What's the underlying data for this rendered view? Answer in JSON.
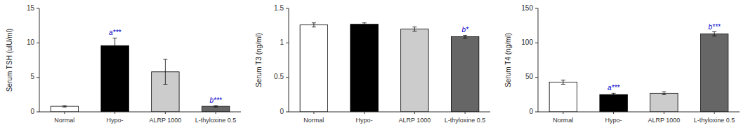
{
  "chart_data": [
    {
      "type": "bar",
      "ylabel": "Serum TSH (uIU/ml)",
      "categories": [
        "Normal",
        "Hypo-",
        "ALRP 1000",
        "L-thyloxine 0.5"
      ],
      "values": [
        0.8,
        9.6,
        5.8,
        0.8
      ],
      "errors": [
        0.1,
        1.1,
        1.8,
        0.1
      ],
      "colors": [
        "#ffffff",
        "#000000",
        "#cccccc",
        "#666666"
      ],
      "ylim": [
        0,
        15
      ],
      "yticks": [
        0,
        5,
        10,
        15
      ],
      "annotations": [
        {
          "text": "a***",
          "category": "Hypo-",
          "color": "#0000cc"
        },
        {
          "text": "b***",
          "category": "L-thyloxine 0.5",
          "color": "#0000cc"
        }
      ]
    },
    {
      "type": "bar",
      "ylabel": "Serum T3 (ng/ml)",
      "categories": [
        "Normal",
        "Hypo-",
        "ALRP 1000",
        "L-thyloxine 0.5"
      ],
      "values": [
        1.26,
        1.27,
        1.2,
        1.09
      ],
      "errors": [
        0.03,
        0.02,
        0.03,
        0.02
      ],
      "colors": [
        "#ffffff",
        "#000000",
        "#cccccc",
        "#666666"
      ],
      "ylim": [
        0,
        1.5
      ],
      "yticks": [
        0,
        0.5,
        1,
        1.5
      ],
      "annotations": [
        {
          "text": "b*",
          "category": "L-thyloxine 0.5",
          "color": "#0000cc"
        }
      ]
    },
    {
      "type": "bar",
      "ylabel": "Serum T4 (ng/ml)",
      "categories": [
        "Normal",
        "Hypo-",
        "ALRP 1000",
        "L-thyloxine 0.5"
      ],
      "values": [
        43,
        25,
        27,
        113
      ],
      "errors": [
        3,
        2,
        2,
        3
      ],
      "colors": [
        "#ffffff",
        "#000000",
        "#cccccc",
        "#666666"
      ],
      "ylim": [
        0,
        150
      ],
      "yticks": [
        0,
        50,
        100,
        150
      ],
      "annotations": [
        {
          "text": "a***",
          "category": "Hypo-",
          "color": "#0000cc"
        },
        {
          "text": "b***",
          "category": "L-thyloxine 0.5",
          "color": "#0000cc"
        }
      ]
    }
  ]
}
